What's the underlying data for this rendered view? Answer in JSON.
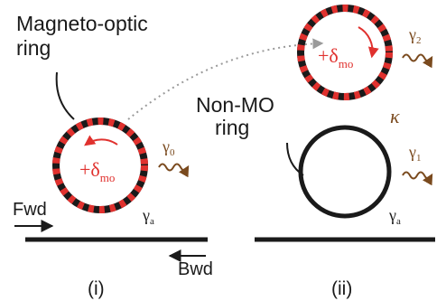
{
  "labels": {
    "mo_ring_line1": "Magneto-optic",
    "mo_ring_line2": "ring",
    "non_mo_line1": "Non-MO",
    "non_mo_line2": "ring",
    "fwd": "Fwd",
    "bwd": "Bwd",
    "panel_i": "(i)",
    "panel_ii": "(ii)",
    "kappa": "κ"
  },
  "symbols": {
    "delta_prefix": "+δ",
    "delta_sub": "mo",
    "gamma": "γ",
    "gamma_0_sub": "0",
    "gamma_1_sub": "1",
    "gamma_2_sub": "2",
    "gamma_a_sub": "a"
  },
  "colors": {
    "ring_dark": "#1a1a1a",
    "ring_red": "#e0312e",
    "mo_red": "#e0312e",
    "leak_brown": "#7a4a1e",
    "text": "#1a1a1a",
    "dotted_gray": "#9a9a9a"
  }
}
